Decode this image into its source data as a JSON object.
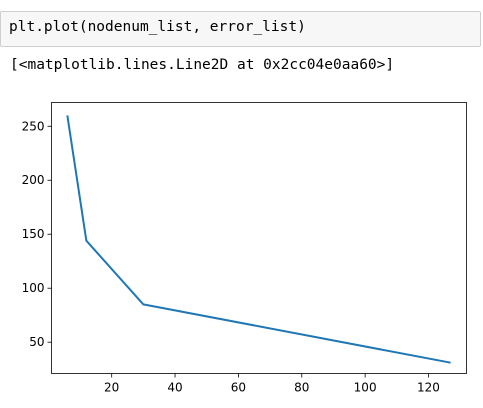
{
  "input_cell": {
    "code": "plt.plot(nodenum_list, error_list)"
  },
  "output": {
    "repr_text": "[<matplotlib.lines.Line2D at 0x2cc04e0aa60>]"
  },
  "chart_data": {
    "type": "line",
    "x": [
      6,
      12,
      30,
      127
    ],
    "series": [
      {
        "values": [
          260,
          144,
          85,
          31
        ],
        "color": "#1f77b4"
      }
    ],
    "xlim": [
      1,
      132
    ],
    "ylim": [
      21,
      272
    ],
    "xticks": [
      20,
      40,
      60,
      80,
      100,
      120
    ],
    "yticks": [
      50,
      100,
      150,
      200,
      250
    ],
    "xtick_labels": [
      "20",
      "40",
      "60",
      "80",
      "100",
      "120"
    ],
    "ytick_labels": [
      "50",
      "100",
      "150",
      "200",
      "250"
    ],
    "title": "",
    "xlabel": "",
    "ylabel": "",
    "grid": false
  }
}
